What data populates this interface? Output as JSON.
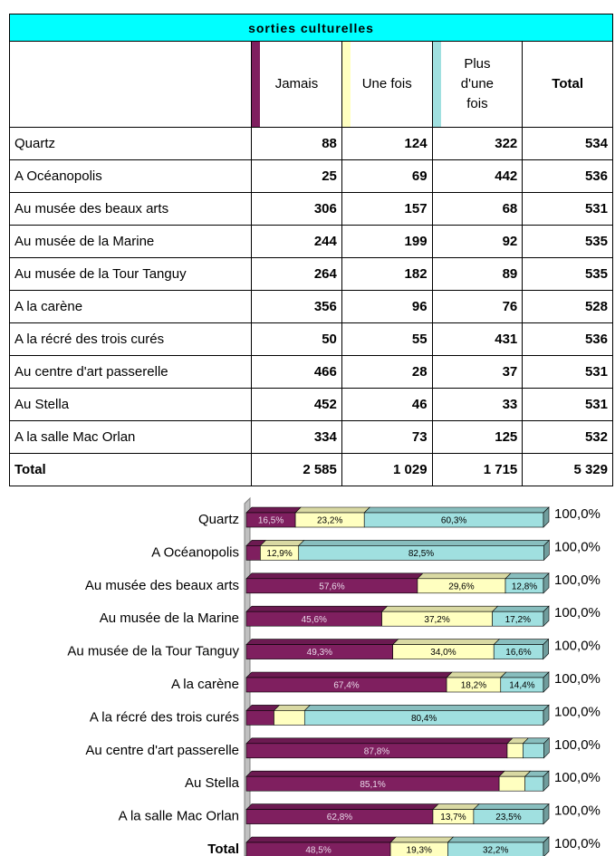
{
  "table": {
    "title": "sorties culturelles",
    "headers": [
      "Jamais",
      "Une fois",
      "Plus d'une fois",
      "Total"
    ],
    "rows": [
      [
        "Quartz",
        88,
        124,
        322,
        534
      ],
      [
        "A Océanopolis",
        25,
        69,
        442,
        536
      ],
      [
        "Au musée des beaux arts",
        306,
        157,
        68,
        531
      ],
      [
        "Au musée de la Marine",
        244,
        199,
        92,
        535
      ],
      [
        "Au musée de la Tour Tanguy",
        264,
        182,
        89,
        535
      ],
      [
        "A la carène",
        356,
        96,
        76,
        528
      ],
      [
        "A la récré des trois curés",
        50,
        55,
        431,
        536
      ],
      [
        "Au centre d'art passerelle",
        466,
        28,
        37,
        531
      ],
      [
        "Au Stella",
        452,
        46,
        33,
        531
      ],
      [
        "A la salle Mac Orlan",
        334,
        73,
        125,
        532
      ],
      [
        "Total",
        "2 585",
        "1 029",
        "1 715",
        "5 329"
      ]
    ]
  },
  "chart_data": {
    "type": "bar",
    "orientation": "horizontal",
    "stacked": true,
    "xlim": [
      0,
      100
    ],
    "categories": [
      "Quartz",
      "A Océanopolis",
      "Au musée des beaux arts",
      "Au musée de la Marine",
      "Au musée de la Tour Tanguy",
      "A la carène",
      "A la récré des trois curés",
      "Au centre d'art passerelle",
      "Au Stella",
      "A la salle Mac Orlan",
      "Total"
    ],
    "series": [
      {
        "name": "Jamais",
        "color": "#7f1f5f",
        "values": [
          16.5,
          4.7,
          57.6,
          45.6,
          49.3,
          67.4,
          9.3,
          87.8,
          85.1,
          62.8,
          48.5
        ],
        "value_labels": [
          "16,5%",
          null,
          "57,6%",
          "45,6%",
          "49,3%",
          "67,4%",
          null,
          "87,8%",
          "85,1%",
          "62,8%",
          "48,5%"
        ]
      },
      {
        "name": "Une fois",
        "color": "#ffffc0",
        "values": [
          23.2,
          12.9,
          29.6,
          37.2,
          34.0,
          18.2,
          10.3,
          5.3,
          8.7,
          13.7,
          19.3
        ],
        "value_labels": [
          "23,2%",
          "12,9%",
          "29,6%",
          "37,2%",
          "34,0%",
          "18,2%",
          null,
          null,
          null,
          "13,7%",
          "19,3%"
        ]
      },
      {
        "name": "Plus d'une fois",
        "color": "#a0e0e0",
        "values": [
          60.3,
          82.5,
          12.8,
          17.2,
          16.6,
          14.4,
          80.4,
          7.0,
          6.2,
          23.5,
          32.2
        ],
        "value_labels": [
          "60,3%",
          "82,5%",
          "12,8%",
          "17,2%",
          "16,6%",
          "14,4%",
          "80,4%",
          null,
          null,
          "23,5%",
          "32,2%"
        ]
      }
    ],
    "totals": [
      100,
      100,
      100,
      100,
      100,
      100,
      100,
      100,
      100,
      100,
      100
    ],
    "total_labels": [
      "100,0%",
      "100,0%",
      "100,0%",
      "100,0%",
      "100,0%",
      "100,0%",
      "100,0%",
      "100,0%",
      "100,0%",
      "100,0%",
      "100,0%"
    ]
  }
}
